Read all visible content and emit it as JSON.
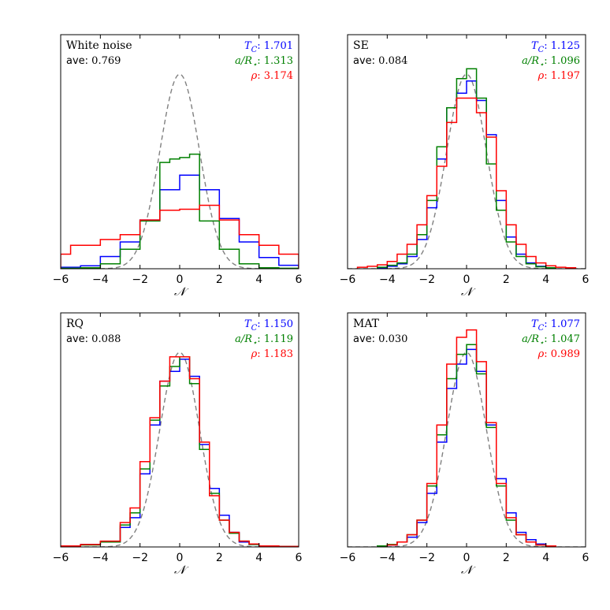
{
  "figure": {
    "xlabel": "𝒩"
  },
  "colors": {
    "tc": "#0000ff",
    "ar": "#008000",
    "rho": "#ff0000",
    "gauss": "#808080"
  },
  "chart_data": [
    {
      "type": "histogram",
      "title": "White noise",
      "ave_label": "ave: ",
      "ave": "0.769",
      "xlim": [
        -6,
        6
      ],
      "ylim": [
        0,
        0.48
      ],
      "xticks": [
        -6,
        -4,
        -2,
        0,
        2,
        4,
        6
      ],
      "xlabel": "𝒩",
      "legend": [
        {
          "key": "tc",
          "symbol": "T",
          "sub": "C",
          "sep": ": ",
          "value": "1.701"
        },
        {
          "key": "ar",
          "symbol": "a/R",
          "sub": "⋆",
          "sep": ": ",
          "value": "1.313"
        },
        {
          "key": "rho",
          "symbol": "ρ",
          "sub": "",
          "sep": ": ",
          "value": "3.174"
        }
      ],
      "series": [
        {
          "name": "T_C",
          "color_key": "tc",
          "edges": [
            -6,
            -5,
            -4,
            -3,
            -2,
            -1,
            0,
            1,
            2,
            3,
            4,
            5,
            6
          ],
          "values": [
            0.003,
            0.006,
            0.025,
            0.055,
            0.1,
            0.162,
            0.192,
            0.162,
            0.103,
            0.055,
            0.023,
            0.007
          ]
        },
        {
          "name": "a/R_star",
          "color_key": "ar",
          "edges": [
            -6,
            -5,
            -4,
            -3,
            -2,
            -1,
            -0.5,
            0,
            0.5,
            1,
            2,
            3,
            4,
            5,
            6
          ],
          "values": [
            0.001,
            0.002,
            0.01,
            0.04,
            0.098,
            0.218,
            0.225,
            0.228,
            0.235,
            0.098,
            0.04,
            0.01,
            0.002,
            0.001
          ]
        },
        {
          "name": "rho",
          "color_key": "rho",
          "edges": [
            -6,
            -5.5,
            -4,
            -3,
            -2,
            -1,
            0,
            1,
            2,
            3,
            4,
            5,
            6
          ],
          "values": [
            0.03,
            0.048,
            0.06,
            0.07,
            0.1,
            0.12,
            0.122,
            0.13,
            0.1,
            0.07,
            0.048,
            0.03
          ]
        }
      ],
      "gaussian": {
        "mean": 0,
        "sigma": 1
      }
    },
    {
      "type": "histogram",
      "title": "SE",
      "ave_label": "ave: ",
      "ave": "0.084",
      "xlim": [
        -6,
        6
      ],
      "ylim": [
        0,
        0.48
      ],
      "xticks": [
        -6,
        -4,
        -2,
        0,
        2,
        4,
        6
      ],
      "xlabel": "𝒩",
      "legend": [
        {
          "key": "tc",
          "symbol": "T",
          "sub": "C",
          "sep": ": ",
          "value": "1.125"
        },
        {
          "key": "ar",
          "symbol": "a/R",
          "sub": "⋆",
          "sep": ": ",
          "value": "1.096"
        },
        {
          "key": "rho",
          "symbol": "ρ",
          "sub": "",
          "sep": ": ",
          "value": "1.197"
        }
      ],
      "series": [
        {
          "name": "T_C",
          "color_key": "tc",
          "edges": [
            -4.5,
            -4,
            -3.5,
            -3,
            -2.5,
            -2,
            -1.5,
            -1,
            -0.5,
            0,
            0.5,
            1,
            1.5,
            2,
            2.5,
            3,
            3.5,
            4,
            4.5
          ],
          "values": [
            0.002,
            0.005,
            0.01,
            0.025,
            0.06,
            0.125,
            0.225,
            0.33,
            0.36,
            0.385,
            0.345,
            0.275,
            0.14,
            0.065,
            0.03,
            0.012,
            0.005,
            0.002
          ]
        },
        {
          "name": "a/R_star",
          "color_key": "ar",
          "edges": [
            -4.5,
            -4,
            -3.5,
            -3,
            -2.5,
            -2,
            -1.5,
            -1,
            -0.5,
            0,
            0.5,
            1,
            1.5,
            2,
            2.5,
            3,
            3.5,
            4,
            4.5
          ],
          "values": [
            0.003,
            0.007,
            0.012,
            0.03,
            0.07,
            0.14,
            0.25,
            0.33,
            0.39,
            0.41,
            0.35,
            0.215,
            0.12,
            0.055,
            0.025,
            0.01,
            0.004,
            0.002
          ]
        },
        {
          "name": "rho",
          "color_key": "rho",
          "edges": [
            -5.5,
            -5,
            -4.5,
            -4,
            -3.5,
            -3,
            -2.5,
            -2,
            -1.5,
            -1,
            -0.5,
            0,
            0.5,
            1,
            1.5,
            2,
            2.5,
            3,
            3.5,
            4,
            4.5,
            5,
            5.5
          ],
          "values": [
            0.003,
            0.005,
            0.008,
            0.015,
            0.03,
            0.05,
            0.09,
            0.15,
            0.21,
            0.3,
            0.35,
            0.35,
            0.32,
            0.27,
            0.16,
            0.09,
            0.05,
            0.025,
            0.012,
            0.006,
            0.003,
            0.002
          ]
        }
      ],
      "gaussian": {
        "mean": 0,
        "sigma": 1
      }
    },
    {
      "type": "histogram",
      "title": "RQ",
      "ave_label": "ave: ",
      "ave": "0.088",
      "xlim": [
        -6,
        6
      ],
      "ylim": [
        0,
        0.48
      ],
      "xticks": [
        -6,
        -4,
        -2,
        0,
        2,
        4,
        6
      ],
      "xlabel": "𝒩",
      "legend": [
        {
          "key": "tc",
          "symbol": "T",
          "sub": "C",
          "sep": ": ",
          "value": "1.150"
        },
        {
          "key": "ar",
          "symbol": "a/R",
          "sub": "⋆",
          "sep": ": ",
          "value": "1.119"
        },
        {
          "key": "rho",
          "symbol": "ρ",
          "sub": "",
          "sep": ": ",
          "value": "1.183"
        }
      ],
      "series": [
        {
          "name": "T_C",
          "color_key": "tc",
          "edges": [
            -6,
            -5,
            -4,
            -3,
            -2.5,
            -2,
            -1.5,
            -1,
            -0.5,
            0,
            0.5,
            1,
            1.5,
            2,
            2.5,
            3,
            3.5,
            4,
            5,
            6
          ],
          "values": [
            0.002,
            0.005,
            0.01,
            0.04,
            0.06,
            0.15,
            0.25,
            0.34,
            0.36,
            0.385,
            0.35,
            0.21,
            0.12,
            0.065,
            0.03,
            0.01,
            0.005,
            0.002,
            0.001
          ]
        },
        {
          "name": "a/R_star",
          "color_key": "ar",
          "edges": [
            -6,
            -5,
            -4,
            -3,
            -2.5,
            -2,
            -1.5,
            -1,
            -0.5,
            0,
            0.5,
            1,
            1.5,
            2,
            2.5,
            3,
            3.5,
            4,
            5,
            6
          ],
          "values": [
            0.002,
            0.004,
            0.01,
            0.045,
            0.07,
            0.16,
            0.26,
            0.33,
            0.37,
            0.39,
            0.335,
            0.2,
            0.11,
            0.055,
            0.028,
            0.012,
            0.005,
            0.002,
            0.001
          ]
        },
        {
          "name": "rho",
          "color_key": "rho",
          "edges": [
            -6,
            -5,
            -4,
            -3,
            -2.5,
            -2,
            -1.5,
            -1,
            -0.5,
            0,
            0.5,
            1,
            1.5,
            2,
            2.5,
            3,
            3.5,
            4,
            5,
            6
          ],
          "values": [
            0.002,
            0.005,
            0.012,
            0.05,
            0.08,
            0.175,
            0.265,
            0.34,
            0.39,
            0.39,
            0.345,
            0.215,
            0.105,
            0.055,
            0.03,
            0.012,
            0.006,
            0.002,
            0.001
          ]
        }
      ],
      "gaussian": {
        "mean": 0,
        "sigma": 1
      }
    },
    {
      "type": "histogram",
      "title": "MAT",
      "ave_label": "ave: ",
      "ave": "0.030",
      "xlim": [
        -6,
        6
      ],
      "ylim": [
        0,
        0.48
      ],
      "xticks": [
        -6,
        -4,
        -2,
        0,
        2,
        4,
        6
      ],
      "xlabel": "𝒩",
      "legend": [
        {
          "key": "tc",
          "symbol": "T",
          "sub": "C",
          "sep": ": ",
          "value": "1.077"
        },
        {
          "key": "ar",
          "symbol": "a/R",
          "sub": "⋆",
          "sep": ": ",
          "value": "1.047"
        },
        {
          "key": "rho",
          "symbol": "ρ",
          "sub": "",
          "sep": ": ",
          "value": "0.989"
        }
      ],
      "series": [
        {
          "name": "T_C",
          "color_key": "tc",
          "edges": [
            -4,
            -3.5,
            -3,
            -2.5,
            -2,
            -1.5,
            -1,
            -0.5,
            0,
            0.5,
            1,
            1.5,
            2,
            2.5,
            3,
            3.5,
            4,
            4.5
          ],
          "values": [
            0.004,
            0.01,
            0.02,
            0.05,
            0.11,
            0.215,
            0.325,
            0.375,
            0.405,
            0.36,
            0.25,
            0.14,
            0.07,
            0.03,
            0.015,
            0.006,
            0.002
          ]
        },
        {
          "name": "a/R_star",
          "color_key": "ar",
          "edges": [
            -4.5,
            -4,
            -3.5,
            -3,
            -2.5,
            -2,
            -1.5,
            -1,
            -0.5,
            0,
            0.5,
            1,
            1.5,
            2,
            2.5,
            3,
            3.5,
            4,
            4.5
          ],
          "values": [
            0.002,
            0.005,
            0.01,
            0.025,
            0.055,
            0.125,
            0.23,
            0.345,
            0.395,
            0.415,
            0.355,
            0.245,
            0.125,
            0.055,
            0.025,
            0.01,
            0.004,
            0.002
          ]
        },
        {
          "name": "rho",
          "color_key": "rho",
          "edges": [
            -4,
            -3.5,
            -3,
            -2.5,
            -2,
            -1.5,
            -1,
            -0.5,
            0,
            0.5,
            1,
            1.5,
            2,
            2.5,
            3,
            3.5,
            4,
            4.5
          ],
          "values": [
            0.004,
            0.01,
            0.025,
            0.055,
            0.13,
            0.25,
            0.375,
            0.43,
            0.445,
            0.38,
            0.255,
            0.13,
            0.06,
            0.025,
            0.01,
            0.004,
            0.002
          ]
        }
      ],
      "gaussian": {
        "mean": 0,
        "sigma": 1
      }
    }
  ]
}
